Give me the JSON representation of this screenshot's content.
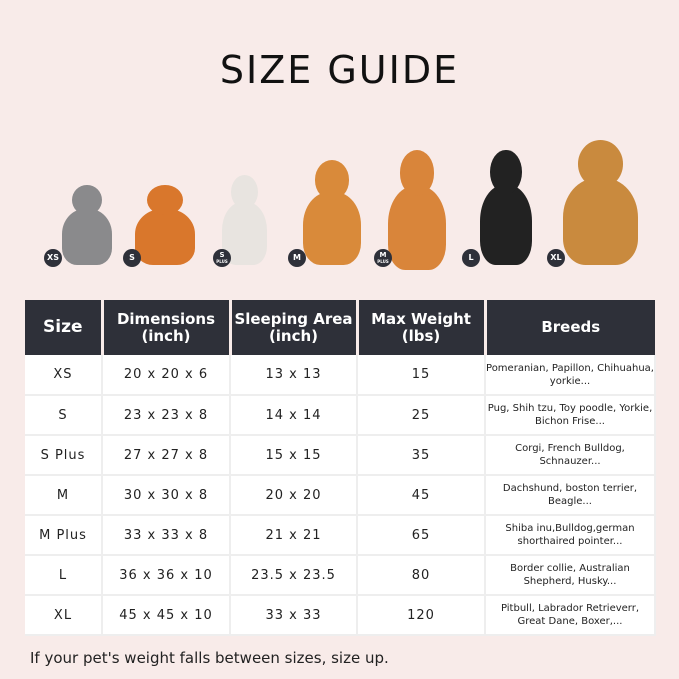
{
  "title": "SIZE GUIDE",
  "pets": [
    {
      "badge": "XS",
      "plus": "",
      "color": "#8a8a8c"
    },
    {
      "badge": "S",
      "plus": "",
      "color": "#d9772c"
    },
    {
      "badge": "S",
      "plus": "PLUS",
      "color": "#e8e4e0"
    },
    {
      "badge": "M",
      "plus": "",
      "color": "#d98a3a"
    },
    {
      "badge": "M",
      "plus": "PLUS",
      "color": "#d9853a"
    },
    {
      "badge": "L",
      "plus": "",
      "color": "#222222"
    },
    {
      "badge": "XL",
      "plus": "",
      "color": "#c98a3e"
    }
  ],
  "table": {
    "headers": [
      "Size",
      "Dimensions\n(inch)",
      "Sleeping Area\n(inch)",
      "Max Weight\n(lbs)",
      "Breeds"
    ],
    "rows": [
      [
        "XS",
        "20 x 20 x 6",
        "13 x 13",
        "15",
        "Pomeranian, Papillon, Chihuahua, yorkie..."
      ],
      [
        "S",
        "23 x 23 x 8",
        "14 x 14",
        "25",
        "Pug, Shih tzu, Toy poodle, Yorkie, Bichon Frise..."
      ],
      [
        "S Plus",
        "27 x 27 x 8",
        "15 x 15",
        "35",
        "Corgi, French Bulldog, Schnauzer..."
      ],
      [
        "M",
        "30 x 30 x 8",
        "20 x 20",
        "45",
        "Dachshund, boston terrier, Beagle..."
      ],
      [
        "M Plus",
        "33 x 33 x 8",
        "21 x 21",
        "65",
        "Shiba inu,Bulldog,german shorthaired pointer..."
      ],
      [
        "L",
        "36 x 36 x 10",
        "23.5 x 23.5",
        "80",
        "Border collie, Australian Shepherd, Husky..."
      ],
      [
        "XL",
        "45 x 45 x 10",
        "33 x 33",
        "120",
        "Pitbull, Labrador Retrieverr, Great Dane, Boxer,..."
      ]
    ]
  },
  "note": "If your pet's weight falls between sizes, size up."
}
